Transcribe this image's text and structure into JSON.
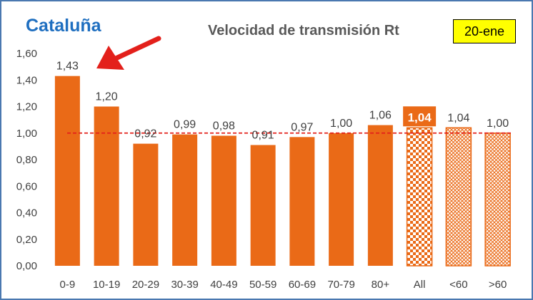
{
  "header": {
    "region": "Cataluña",
    "title": "Velocidad de transmisión Rt",
    "date_badge": "20-ene"
  },
  "colors": {
    "bar": "#ea6a17",
    "reference_line": "#e3201b",
    "arrow": "#e3201b",
    "axis_text": "#404040"
  },
  "chart_data": {
    "type": "bar",
    "title": "Velocidad de transmisión Rt",
    "xlabel": "",
    "ylabel": "",
    "categories": [
      "0-9",
      "10-19",
      "20-29",
      "30-39",
      "40-49",
      "50-59",
      "60-69",
      "70-79",
      "80+",
      "All",
      "<60",
      ">60"
    ],
    "values": [
      1.43,
      1.2,
      0.92,
      0.99,
      0.98,
      0.91,
      0.97,
      1.0,
      1.06,
      1.04,
      1.04,
      1.0
    ],
    "value_labels": [
      "1,43",
      "1,20",
      "0,92",
      "0,99",
      "0,98",
      "0,91",
      "0,97",
      "1,00",
      "1,06",
      "1,04",
      "1,04",
      "1,00"
    ],
    "bar_styles": [
      "solid",
      "solid",
      "solid",
      "solid",
      "solid",
      "solid",
      "solid",
      "solid",
      "solid",
      "checker",
      "crosshatch",
      "crosshatch"
    ],
    "highlighted_label_index": 9,
    "ylim": [
      0,
      1.6
    ],
    "yticks": [
      0,
      0.2,
      0.4,
      0.6,
      0.8,
      1.0,
      1.2,
      1.4,
      1.6
    ],
    "ytick_labels": [
      "0,00",
      "0,20",
      "0,40",
      "0,60",
      "0,80",
      "1,00",
      "1,20",
      "1,40",
      "1,60"
    ],
    "reference_line": 1.0,
    "reference_line_style": "dashed",
    "grid": false,
    "annotation": "arrow pointing to 0-9 bar"
  }
}
